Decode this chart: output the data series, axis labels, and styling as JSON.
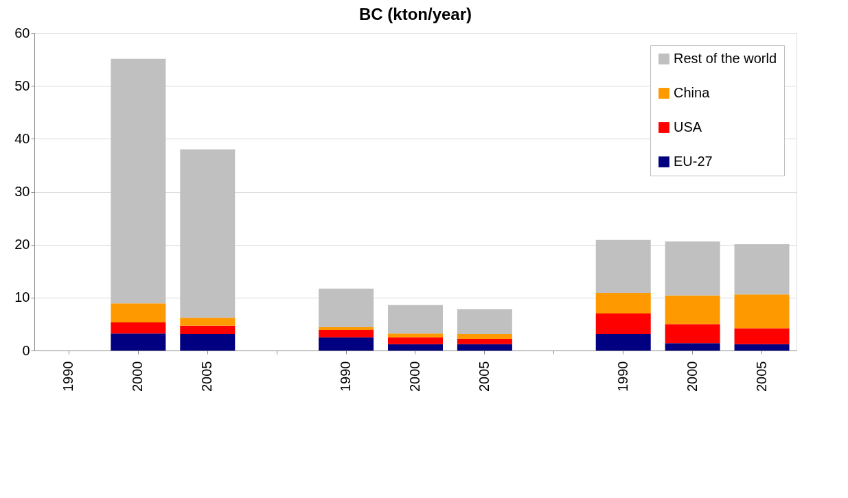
{
  "chart_data": {
    "type": "bar",
    "title": "BC (kton/year)",
    "stacked": true,
    "categories": [
      "1990",
      "2000",
      "2005",
      null,
      "1990",
      "2000",
      "2005",
      null,
      "1990",
      "2000",
      "2005"
    ],
    "series": [
      {
        "name": "EU-27",
        "color": "#000080",
        "values": [
          null,
          3.2,
          3.1,
          null,
          2.5,
          1.2,
          1.2,
          null,
          3.1,
          1.4,
          1.2
        ]
      },
      {
        "name": "USA",
        "color": "#ff0000",
        "values": [
          null,
          2.1,
          1.6,
          null,
          1.4,
          1.3,
          1.0,
          null,
          3.9,
          3.6,
          3.0
        ]
      },
      {
        "name": "China",
        "color": "#ff9900",
        "values": [
          null,
          3.6,
          1.5,
          null,
          0.5,
          0.7,
          0.9,
          null,
          3.9,
          5.4,
          6.4
        ]
      },
      {
        "name": "Rest of the world",
        "color": "#c0c0c0",
        "values": [
          null,
          46.2,
          31.8,
          null,
          7.3,
          5.4,
          4.7,
          null,
          10.0,
          10.2,
          9.5
        ]
      }
    ],
    "ylim": [
      0,
      60
    ],
    "yticks": [
      0,
      10,
      20,
      30,
      40,
      50,
      60
    ],
    "grid": "y",
    "legend": "top right"
  }
}
